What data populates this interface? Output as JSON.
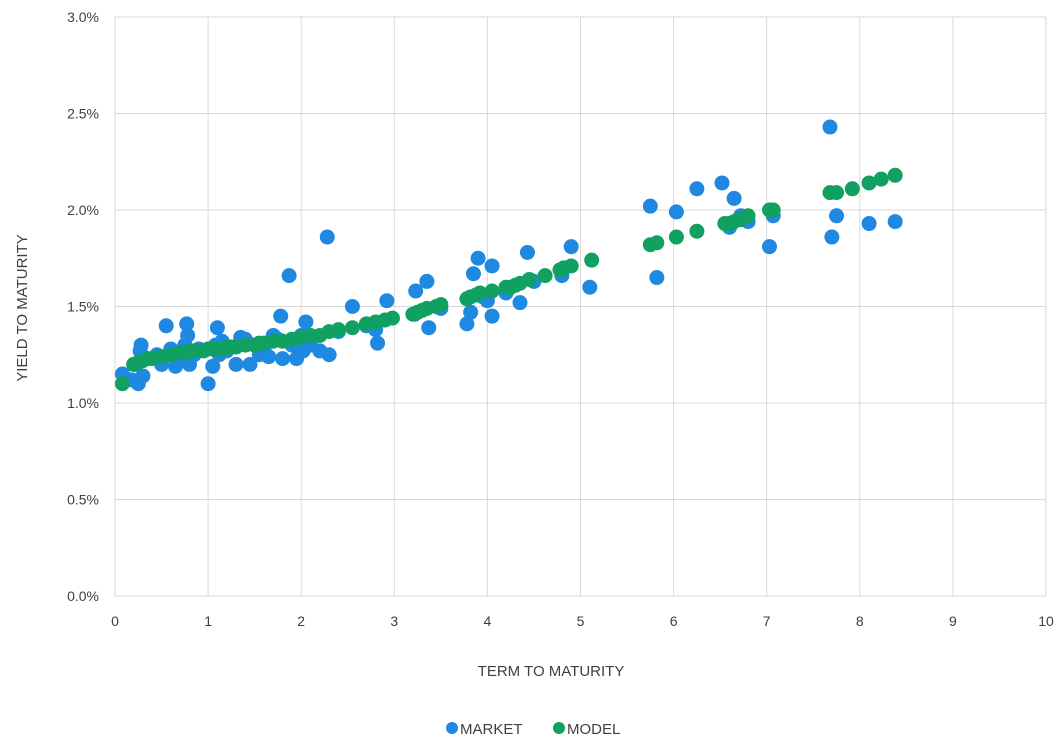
{
  "chart_data": {
    "type": "scatter",
    "title": "",
    "xlabel": "TERM TO MATURITY",
    "ylabel": "YIELD TO MATURITY",
    "xlim": [
      0,
      10
    ],
    "ylim": [
      0.0,
      3.0
    ],
    "x_ticks": [
      "0",
      "1",
      "2",
      "3",
      "4",
      "5",
      "6",
      "7",
      "8",
      "9",
      "10"
    ],
    "y_ticks": [
      "0.0%",
      "0.5%",
      "1.0%",
      "1.5%",
      "2.0%",
      "2.5%",
      "3.0%"
    ],
    "grid": true,
    "legend_position": "bottom",
    "series": [
      {
        "name": "MARKET",
        "color": "#1f88e0",
        "points": [
          [
            0.08,
            1.15
          ],
          [
            0.18,
            1.12
          ],
          [
            0.22,
            1.2
          ],
          [
            0.25,
            1.1
          ],
          [
            0.27,
            1.27
          ],
          [
            0.28,
            1.3
          ],
          [
            0.3,
            1.14
          ],
          [
            0.35,
            1.23
          ],
          [
            0.45,
            1.25
          ],
          [
            0.5,
            1.2
          ],
          [
            0.55,
            1.4
          ],
          [
            0.6,
            1.28
          ],
          [
            0.65,
            1.19
          ],
          [
            0.7,
            1.24
          ],
          [
            0.75,
            1.3
          ],
          [
            0.77,
            1.41
          ],
          [
            0.78,
            1.35
          ],
          [
            0.8,
            1.2
          ],
          [
            0.85,
            1.25
          ],
          [
            0.9,
            1.28
          ],
          [
            1.0,
            1.1
          ],
          [
            1.05,
            1.19
          ],
          [
            1.08,
            1.3
          ],
          [
            1.1,
            1.39
          ],
          [
            1.12,
            1.25
          ],
          [
            1.15,
            1.32
          ],
          [
            1.2,
            1.27
          ],
          [
            1.3,
            1.2
          ],
          [
            1.35,
            1.34
          ],
          [
            1.4,
            1.33
          ],
          [
            1.45,
            1.2
          ],
          [
            1.5,
            1.3
          ],
          [
            1.55,
            1.25
          ],
          [
            1.6,
            1.28
          ],
          [
            1.65,
            1.24
          ],
          [
            1.7,
            1.35
          ],
          [
            1.75,
            1.33
          ],
          [
            1.78,
            1.45
          ],
          [
            1.8,
            1.23
          ],
          [
            1.87,
            1.66
          ],
          [
            1.9,
            1.3
          ],
          [
            1.95,
            1.23
          ],
          [
            2.0,
            1.35
          ],
          [
            2.02,
            1.27
          ],
          [
            2.05,
            1.42
          ],
          [
            2.1,
            1.3
          ],
          [
            2.2,
            1.27
          ],
          [
            2.28,
            1.86
          ],
          [
            2.3,
            1.25
          ],
          [
            2.4,
            1.37
          ],
          [
            2.55,
            1.5
          ],
          [
            2.7,
            1.4
          ],
          [
            2.8,
            1.38
          ],
          [
            2.82,
            1.31
          ],
          [
            2.92,
            1.53
          ],
          [
            3.22,
            1.46
          ],
          [
            3.23,
            1.58
          ],
          [
            3.35,
            1.63
          ],
          [
            3.37,
            1.39
          ],
          [
            3.45,
            1.5
          ],
          [
            3.5,
            1.49
          ],
          [
            3.78,
            1.41
          ],
          [
            3.82,
            1.47
          ],
          [
            3.85,
            1.67
          ],
          [
            3.9,
            1.75
          ],
          [
            3.95,
            1.55
          ],
          [
            4.0,
            1.53
          ],
          [
            4.05,
            1.45
          ],
          [
            4.05,
            1.71
          ],
          [
            4.2,
            1.57
          ],
          [
            4.35,
            1.52
          ],
          [
            4.43,
            1.78
          ],
          [
            4.5,
            1.63
          ],
          [
            4.8,
            1.66
          ],
          [
            4.9,
            1.81
          ],
          [
            5.1,
            1.6
          ],
          [
            5.75,
            2.02
          ],
          [
            5.82,
            1.65
          ],
          [
            6.03,
            1.99
          ],
          [
            6.25,
            2.11
          ],
          [
            6.52,
            2.14
          ],
          [
            6.6,
            1.91
          ],
          [
            6.65,
            2.06
          ],
          [
            6.72,
            1.97
          ],
          [
            6.8,
            1.94
          ],
          [
            7.03,
            1.81
          ],
          [
            7.07,
            1.97
          ],
          [
            7.68,
            2.43
          ],
          [
            7.7,
            1.86
          ],
          [
            7.75,
            1.97
          ],
          [
            8.1,
            1.93
          ],
          [
            8.38,
            1.94
          ]
        ]
      },
      {
        "name": "MODEL",
        "color": "#10a060",
        "points": [
          [
            0.08,
            1.1
          ],
          [
            0.2,
            1.2
          ],
          [
            0.25,
            1.21
          ],
          [
            0.3,
            1.22
          ],
          [
            0.35,
            1.23
          ],
          [
            0.4,
            1.23
          ],
          [
            0.5,
            1.24
          ],
          [
            0.6,
            1.25
          ],
          [
            0.7,
            1.26
          ],
          [
            0.75,
            1.26
          ],
          [
            0.8,
            1.27
          ],
          [
            0.85,
            1.27
          ],
          [
            0.95,
            1.27
          ],
          [
            1.0,
            1.28
          ],
          [
            1.05,
            1.28
          ],
          [
            1.1,
            1.28
          ],
          [
            1.15,
            1.28
          ],
          [
            1.2,
            1.29
          ],
          [
            1.25,
            1.29
          ],
          [
            1.3,
            1.29
          ],
          [
            1.4,
            1.3
          ],
          [
            1.5,
            1.3
          ],
          [
            1.55,
            1.31
          ],
          [
            1.6,
            1.31
          ],
          [
            1.7,
            1.32
          ],
          [
            1.8,
            1.32
          ],
          [
            1.9,
            1.33
          ],
          [
            2.0,
            1.34
          ],
          [
            2.1,
            1.35
          ],
          [
            2.2,
            1.35
          ],
          [
            2.3,
            1.37
          ],
          [
            2.4,
            1.38
          ],
          [
            2.55,
            1.39
          ],
          [
            2.7,
            1.41
          ],
          [
            2.8,
            1.42
          ],
          [
            2.9,
            1.43
          ],
          [
            2.98,
            1.44
          ],
          [
            3.2,
            1.46
          ],
          [
            3.25,
            1.47
          ],
          [
            3.3,
            1.48
          ],
          [
            3.35,
            1.49
          ],
          [
            3.45,
            1.5
          ],
          [
            3.5,
            1.51
          ],
          [
            3.78,
            1.54
          ],
          [
            3.82,
            1.55
          ],
          [
            3.88,
            1.56
          ],
          [
            3.92,
            1.57
          ],
          [
            4.05,
            1.58
          ],
          [
            4.2,
            1.6
          ],
          [
            4.25,
            1.6
          ],
          [
            4.3,
            1.61
          ],
          [
            4.35,
            1.62
          ],
          [
            4.45,
            1.64
          ],
          [
            4.62,
            1.66
          ],
          [
            4.78,
            1.69
          ],
          [
            4.82,
            1.7
          ],
          [
            4.9,
            1.71
          ],
          [
            5.12,
            1.74
          ],
          [
            5.75,
            1.82
          ],
          [
            5.82,
            1.83
          ],
          [
            6.03,
            1.86
          ],
          [
            6.25,
            1.89
          ],
          [
            6.55,
            1.93
          ],
          [
            6.6,
            1.93
          ],
          [
            6.65,
            1.94
          ],
          [
            6.72,
            1.95
          ],
          [
            6.8,
            1.97
          ],
          [
            7.03,
            2.0
          ],
          [
            7.07,
            2.0
          ],
          [
            7.68,
            2.09
          ],
          [
            7.75,
            2.09
          ],
          [
            7.92,
            2.11
          ],
          [
            8.1,
            2.14
          ],
          [
            8.23,
            2.16
          ],
          [
            8.38,
            2.18
          ]
        ]
      }
    ]
  }
}
